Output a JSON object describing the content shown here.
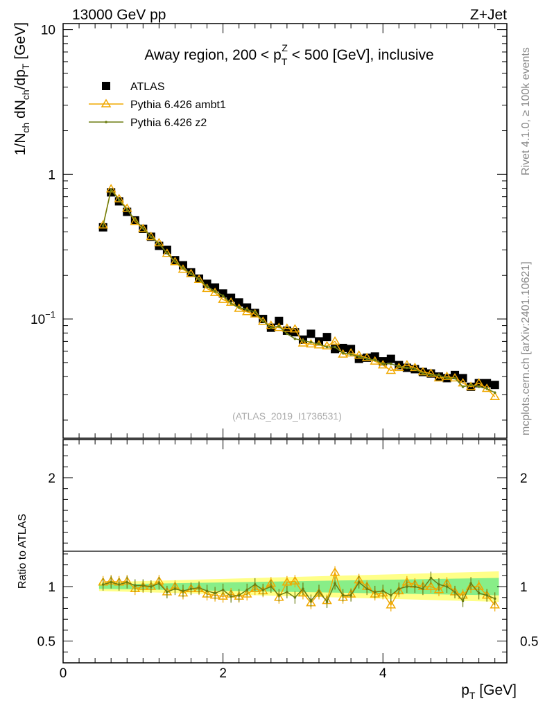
{
  "header": {
    "left": "13000 GeV pp",
    "right": "Z+Jet"
  },
  "side_labels": {
    "rivet": "Rivet 4.1.0, ≥ 100k events",
    "mcplots": "mcplots.cern.ch [arXiv:2401.10621]"
  },
  "colors": {
    "atlas": "#000000",
    "ambt1": "#f0a800",
    "z2": "#6b7d12",
    "band_inner": "#88ee88",
    "band_outer": "#ffff88"
  },
  "chart_data": [
    {
      "type": "scatter",
      "panel": "main",
      "title": "Away region, 200 < p_T^Z < 500 [GeV], inclusive",
      "title_parts": {
        "pre": "Away region, 200 < p",
        "sup": "Z",
        "sub": "T",
        "post": " < 500 [GeV], inclusive"
      },
      "ylabel": "1/N_ch dN_ch/dp_T [GeV]",
      "ylabel_parts": {
        "a": "1/N",
        "a_sub": "ch",
        "b": " dN",
        "b_sub": "ch",
        "c": "/dp",
        "c_sub": "T",
        "d": " [GeV]"
      },
      "yscale": "log",
      "ylim": [
        0.015,
        11
      ],
      "xlim": [
        0,
        5.55
      ],
      "y_ticks": [
        {
          "value": 10,
          "label": "10"
        },
        {
          "value": 1,
          "label": "1"
        },
        {
          "value": 0.1,
          "label": "10",
          "sup": "−1"
        }
      ],
      "watermark": "(ATLAS_2019_I1736531)",
      "legend_position": "top-left",
      "legend": [
        "ATLAS",
        "Pythia 6.426 ambt1",
        "Pythia 6.426 z2"
      ],
      "x": [
        0.5,
        0.6,
        0.7,
        0.8,
        0.9,
        1.0,
        1.1,
        1.2,
        1.3,
        1.4,
        1.5,
        1.6,
        1.7,
        1.8,
        1.9,
        2.0,
        2.1,
        2.2,
        2.3,
        2.4,
        2.5,
        2.6,
        2.7,
        2.8,
        2.9,
        3.0,
        3.1,
        3.2,
        3.3,
        3.4,
        3.5,
        3.6,
        3.7,
        3.8,
        3.9,
        4.0,
        4.1,
        4.2,
        4.3,
        4.4,
        4.5,
        4.6,
        4.7,
        4.8,
        4.9,
        5.0,
        5.1,
        5.2,
        5.3,
        5.4
      ],
      "series": [
        {
          "name": "ATLAS",
          "marker": "square",
          "values": [
            0.43,
            0.75,
            0.65,
            0.55,
            0.48,
            0.42,
            0.37,
            0.32,
            0.3,
            0.255,
            0.235,
            0.21,
            0.19,
            0.175,
            0.165,
            0.15,
            0.14,
            0.13,
            0.12,
            0.11,
            0.1,
            0.087,
            0.097,
            0.083,
            0.081,
            0.072,
            0.079,
            0.07,
            0.075,
            0.062,
            0.063,
            0.062,
            0.053,
            0.054,
            0.055,
            0.051,
            0.053,
            0.048,
            0.046,
            0.045,
            0.043,
            0.042,
            0.04,
            0.039,
            0.041,
            0.039,
            0.034,
            0.036,
            0.036,
            0.035
          ]
        },
        {
          "name": "Pythia 6.426 ambt1",
          "marker": "triangle",
          "values": [
            0.445,
            0.79,
            0.675,
            0.58,
            0.47,
            0.42,
            0.37,
            0.335,
            0.283,
            0.248,
            0.22,
            0.205,
            0.187,
            0.162,
            0.152,
            0.136,
            0.13,
            0.118,
            0.112,
            0.108,
            0.096,
            0.09,
            0.087,
            0.086,
            0.085,
            0.068,
            0.067,
            0.066,
            0.065,
            0.07,
            0.057,
            0.058,
            0.056,
            0.054,
            0.051,
            0.048,
            0.044,
            0.046,
            0.048,
            0.046,
            0.043,
            0.042,
            0.039,
            0.04,
            0.039,
            0.036,
            0.034,
            0.036,
            0.033,
            0.029
          ]
        },
        {
          "name": "Pythia 6.426 z2",
          "marker": "dot",
          "values": [
            0.44,
            0.78,
            0.665,
            0.57,
            0.485,
            0.425,
            0.37,
            0.33,
            0.285,
            0.25,
            0.225,
            0.205,
            0.188,
            0.168,
            0.155,
            0.145,
            0.128,
            0.12,
            0.116,
            0.112,
            0.097,
            0.087,
            0.089,
            0.079,
            0.073,
            0.071,
            0.069,
            0.067,
            0.064,
            0.064,
            0.058,
            0.057,
            0.055,
            0.053,
            0.052,
            0.049,
            0.049,
            0.047,
            0.046,
            0.045,
            0.042,
            0.041,
            0.041,
            0.039,
            0.039,
            0.034,
            0.035,
            0.034,
            0.033,
            0.031
          ]
        }
      ]
    },
    {
      "type": "scatter",
      "panel": "ratio",
      "ylabel": "Ratio to ATLAS",
      "xlabel": "p_T [GeV]",
      "xlabel_parts": {
        "a": "p",
        "sub": "T",
        "b": " [GeV]"
      },
      "ylim": [
        0.3,
        2.35
      ],
      "xlim": [
        0,
        5.55
      ],
      "y_ticks": [
        {
          "value": 0.5,
          "label": "0.5"
        },
        {
          "value": 1,
          "label": "1"
        },
        {
          "value": 2,
          "label": "2"
        }
      ],
      "x_ticks": [
        {
          "value": 0,
          "label": "0"
        },
        {
          "value": 2,
          "label": "2"
        },
        {
          "value": 4,
          "label": "4"
        }
      ],
      "band": {
        "x_start": 0.45,
        "x_end": 5.45,
        "inner_halfwidth_start": 0.02,
        "inner_halfwidth_end": 0.08,
        "outer_halfwidth_start": 0.04,
        "outer_halfwidth_end": 0.14
      },
      "series": [
        {
          "name": "Pythia 6.426 ambt1",
          "values": [
            1.04,
            1.05,
            1.04,
            1.05,
            0.98,
            1.0,
            1.0,
            1.05,
            0.95,
            1.0,
            0.94,
            0.98,
            0.98,
            0.93,
            0.92,
            0.91,
            0.93,
            0.91,
            0.93,
            0.98,
            0.96,
            1.03,
            0.9,
            1.04,
            1.05,
            0.94,
            0.85,
            0.94,
            0.87,
            1.13,
            0.9,
            0.93,
            1.06,
            1.0,
            0.93,
            0.94,
            0.83,
            0.96,
            1.04,
            1.02,
            1.0,
            1.0,
            0.97,
            1.03,
            0.95,
            0.92,
            1.0,
            1.0,
            0.92,
            0.83
          ]
        },
        {
          "name": "Pythia 6.426 z2",
          "values": [
            1.02,
            1.04,
            1.02,
            1.04,
            1.01,
            1.01,
            1.0,
            1.03,
            0.95,
            0.98,
            0.96,
            0.98,
            0.99,
            0.96,
            0.94,
            0.97,
            0.91,
            0.92,
            0.97,
            1.02,
            0.97,
            1.0,
            0.92,
            0.95,
            0.9,
            0.98,
            0.87,
            0.96,
            0.86,
            1.03,
            0.92,
            0.92,
            1.04,
            0.98,
            0.95,
            0.96,
            0.92,
            0.98,
            1.0,
            1.0,
            0.98,
            1.08,
            1.02,
            1.0,
            0.95,
            0.87,
            1.03,
            0.94,
            0.92,
            0.89
          ]
        }
      ]
    }
  ]
}
